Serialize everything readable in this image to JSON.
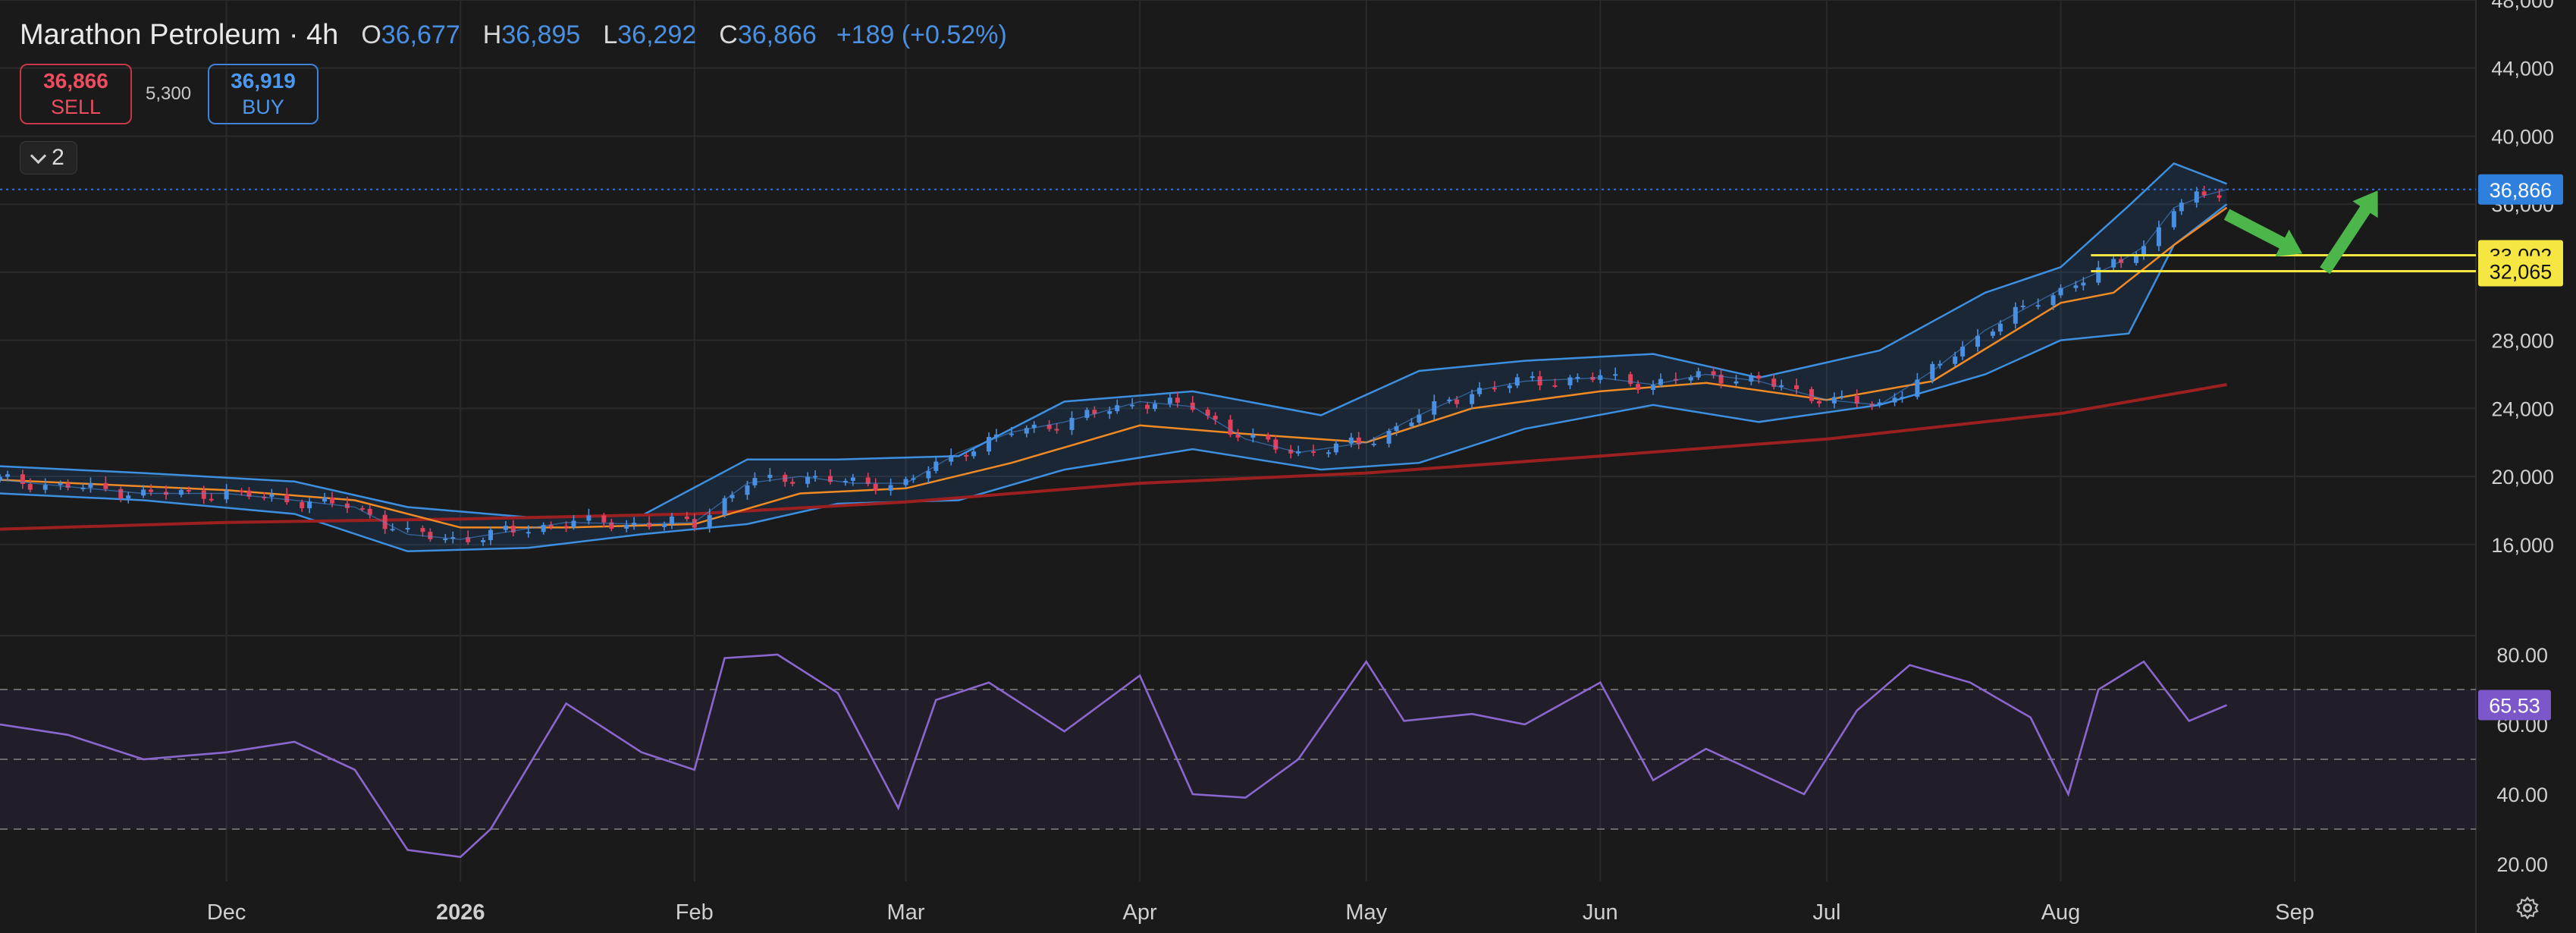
{
  "header": {
    "symbol": "Marathon Petroleum · 4h",
    "open_label": "O",
    "open": "36,677",
    "high_label": "H",
    "high": "36,895",
    "low_label": "L",
    "low": "36,292",
    "close_label": "C",
    "close": "36,866",
    "change": "+189 (+0.52%)"
  },
  "trade": {
    "sell_price": "36,866",
    "sell_label": "SELL",
    "spread": "5,300",
    "buy_price": "36,919",
    "buy_label": "BUY"
  },
  "indicator_toggle": {
    "count": "2"
  },
  "colors": {
    "up": "#4a90e2",
    "down": "#e0405a",
    "band": "#3d8fe0",
    "ma_short": "#f08a24",
    "ma_long": "#9c2020",
    "rsi": "#8a67cf",
    "level": "#f5e642",
    "arrow": "#4cb64a"
  },
  "chart_data": [
    {
      "type": "line",
      "pane": "price",
      "y_ticks": [
        16000,
        20000,
        24000,
        28000,
        32000,
        36000,
        40000,
        44000,
        48000
      ],
      "y_tick_labels": [
        "16,000",
        "20,000",
        "24,000",
        "28,000",
        "32,000",
        "36,000",
        "40,000",
        "44,000",
        "48,000"
      ],
      "ylim": [
        11000,
        48000
      ],
      "x_tick_labels": [
        "Dec",
        "2026",
        "Feb",
        "Mar",
        "Apr",
        "May",
        "Jun",
        "Jul",
        "Aug",
        "Sep"
      ],
      "x_ticks": [
        "2025-12-01",
        "2026-01-01",
        "2026-02-01",
        "2026-03-01",
        "2026-04-01",
        "2026-05-01",
        "2026-06-01",
        "2026-07-01",
        "2026-08-01",
        "2026-09-01"
      ],
      "xlim": [
        "2025-11-01",
        "2026-09-25"
      ],
      "series": [
        {
          "x": [
            "2025-11-01",
            "2025-11-10",
            "2025-11-20",
            "2025-12-01",
            "2025-12-10",
            "2025-12-18",
            "2025-12-25",
            "2026-01-01",
            "2026-01-08",
            "2026-01-15",
            "2026-01-25",
            "2026-02-01",
            "2026-02-08",
            "2026-02-15",
            "2026-02-22",
            "2026-03-01",
            "2026-03-08",
            "2026-03-15",
            "2026-03-22",
            "2026-04-01",
            "2026-04-08",
            "2026-04-15",
            "2026-04-22",
            "2026-05-01",
            "2026-05-08",
            "2026-05-15",
            "2026-05-22",
            "2026-06-01",
            "2026-06-08",
            "2026-06-15",
            "2026-06-22",
            "2026-07-01",
            "2026-07-08",
            "2026-07-15",
            "2026-07-22",
            "2026-08-01",
            "2026-08-05",
            "2026-08-08",
            "2026-08-12",
            "2026-08-16",
            "2026-08-20",
            "2026-08-23"
          ],
          "values": [
            19800,
            19400,
            19000,
            19000,
            18600,
            18200,
            16600,
            16300,
            16800,
            17300,
            17200,
            17300,
            19600,
            20000,
            19600,
            19600,
            21400,
            22600,
            23200,
            24400,
            24100,
            22200,
            21400,
            22000,
            23600,
            25000,
            25600,
            25800,
            25400,
            26000,
            25600,
            24500,
            24200,
            26200,
            28600,
            31000,
            31800,
            32400,
            33500,
            35800,
            36500,
            36866
          ]
        },
        {
          "x": [
            "2025-11-01",
            "2025-12-01",
            "2025-12-18",
            "2026-01-01",
            "2026-01-15",
            "2026-02-01",
            "2026-02-15",
            "2026-03-01",
            "2026-03-15",
            "2026-04-01",
            "2026-04-15",
            "2026-05-01",
            "2026-05-15",
            "2026-06-01",
            "2026-06-15",
            "2026-07-01",
            "2026-07-15",
            "2026-08-01",
            "2026-08-08",
            "2026-08-16",
            "2026-08-23"
          ],
          "values": [
            19800,
            19200,
            18600,
            17000,
            17000,
            17200,
            19000,
            19300,
            20800,
            23000,
            22500,
            22000,
            24000,
            25000,
            25500,
            24500,
            25600,
            30200,
            30800,
            33600,
            35800
          ]
        },
        {
          "x": [
            "2025-11-01",
            "2025-12-01",
            "2026-01-01",
            "2026-02-01",
            "2026-03-01",
            "2026-04-01",
            "2026-05-01",
            "2026-06-01",
            "2026-07-01",
            "2026-08-01",
            "2026-08-23"
          ],
          "values": [
            16900,
            17300,
            17500,
            17800,
            18500,
            19600,
            20200,
            21200,
            22200,
            23700,
            25400
          ]
        },
        {
          "x": [
            "2025-11-01",
            "2025-11-20",
            "2025-12-10",
            "2025-12-25",
            "2026-01-10",
            "2026-01-25",
            "2026-02-08",
            "2026-02-20",
            "2026-03-08",
            "2026-03-22",
            "2026-04-08",
            "2026-04-25",
            "2026-05-08",
            "2026-05-22",
            "2026-06-08",
            "2026-06-22",
            "2026-07-08",
            "2026-07-22",
            "2026-08-01",
            "2026-08-10",
            "2026-08-16",
            "2026-08-23"
          ],
          "values": [
            20600,
            20200,
            19700,
            18200,
            17600,
            17700,
            21000,
            21000,
            21200,
            24400,
            25000,
            23600,
            26200,
            26800,
            27200,
            25800,
            27400,
            30800,
            32300,
            35900,
            38400,
            37200
          ]
        },
        {
          "x": [
            "2025-11-01",
            "2025-11-20",
            "2025-12-10",
            "2025-12-25",
            "2026-01-10",
            "2026-01-25",
            "2026-02-08",
            "2026-02-20",
            "2026-03-08",
            "2026-03-22",
            "2026-04-08",
            "2026-04-25",
            "2026-05-08",
            "2026-05-22",
            "2026-06-08",
            "2026-06-22",
            "2026-07-08",
            "2026-07-22",
            "2026-08-01",
            "2026-08-10",
            "2026-08-16",
            "2026-08-23"
          ],
          "values": [
            19000,
            18600,
            17800,
            15600,
            15800,
            16600,
            17200,
            18400,
            18600,
            20400,
            21600,
            20400,
            20800,
            22800,
            24200,
            23200,
            24200,
            26000,
            28000,
            28400,
            33600,
            36000
          ]
        }
      ],
      "price_line": 36866,
      "price_line_label": "36,866",
      "levels": [
        {
          "value": 33002,
          "label": "33,002"
        },
        {
          "value": 32065,
          "label": "32,065"
        }
      ],
      "arrows": [
        {
          "from": [
            "2026-08-23",
            35400
          ],
          "to": [
            "2026-09-02",
            33100
          ]
        },
        {
          "from": [
            "2026-09-05",
            32100
          ],
          "to": [
            "2026-09-12",
            36800
          ]
        }
      ]
    },
    {
      "type": "line",
      "pane": "rsi",
      "y_ticks": [
        20,
        40,
        60,
        80
      ],
      "y_tick_labels": [
        "20.00",
        "40.00",
        "60.00",
        "80.00"
      ],
      "ylim": [
        15,
        85
      ],
      "bands": [
        30,
        50,
        70
      ],
      "x": [
        "2025-11-01",
        "2025-11-10",
        "2025-11-20",
        "2025-12-01",
        "2025-12-10",
        "2025-12-18",
        "2025-12-25",
        "2026-01-01",
        "2026-01-05",
        "2026-01-15",
        "2026-01-25",
        "2026-02-01",
        "2026-02-05",
        "2026-02-12",
        "2026-02-20",
        "2026-02-28",
        "2026-03-05",
        "2026-03-12",
        "2026-03-22",
        "2026-04-01",
        "2026-04-08",
        "2026-04-15",
        "2026-04-22",
        "2026-05-01",
        "2026-05-06",
        "2026-05-15",
        "2026-05-22",
        "2026-06-01",
        "2026-06-08",
        "2026-06-15",
        "2026-06-22",
        "2026-06-28",
        "2026-07-05",
        "2026-07-12",
        "2026-07-20",
        "2026-07-28",
        "2026-08-02",
        "2026-08-06",
        "2026-08-12",
        "2026-08-18",
        "2026-08-23"
      ],
      "values": [
        60,
        57,
        50,
        52,
        55,
        47,
        24,
        22,
        30,
        66,
        52,
        47,
        79,
        80,
        69,
        36,
        67,
        72,
        58,
        74,
        40,
        39,
        50,
        78,
        61,
        63,
        60,
        72,
        44,
        53,
        46,
        40,
        64,
        77,
        72,
        62,
        40,
        70,
        78,
        61,
        65.53
      ],
      "last_label": "65.53"
    }
  ]
}
